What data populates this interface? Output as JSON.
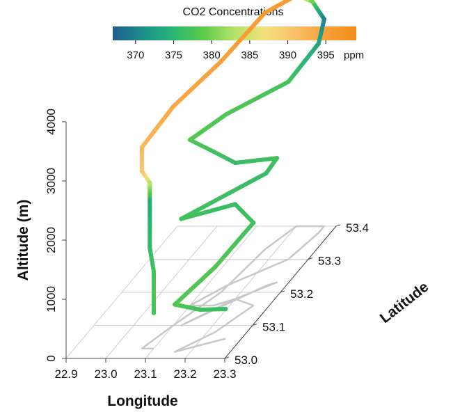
{
  "chart_data": {
    "type": "scatter",
    "projection": "3d",
    "title": "CO2 Concentrations",
    "colorbar": {
      "label": "CO2 Concentrations",
      "unit": "ppm",
      "ticks": [
        "370",
        "375",
        "380",
        "385",
        "390",
        "395"
      ],
      "tick_values": [
        370,
        375,
        380,
        385,
        390,
        395
      ],
      "range": [
        367,
        399
      ],
      "colors": [
        "#1f5d8e",
        "#1f8e8e",
        "#2bb673",
        "#5dcb4a",
        "#b5e26a",
        "#f3e17a",
        "#fbc06a",
        "#f8a13a",
        "#f48b1a"
      ]
    },
    "xlabel": "Longitude",
    "ylabel": "Latitude",
    "zlabel": "Altitude (m)",
    "xticks": [
      "22.9",
      "23.0",
      "23.1",
      "23.2",
      "23.3"
    ],
    "yticks": [
      "53.0",
      "53.1",
      "53.2",
      "53.3",
      "53.4"
    ],
    "zticks": [
      "0",
      "1000",
      "2000",
      "3000",
      "4000"
    ],
    "xlim": [
      22.9,
      23.3
    ],
    "ylim": [
      53.0,
      53.4
    ],
    "zlim": [
      0,
      4000
    ],
    "grid": true,
    "flight_track": [
      {
        "lon": 23.1,
        "lat": 53.03,
        "alt": 600,
        "co2": 377
      },
      {
        "lon": 23.1,
        "lat": 53.03,
        "alt": 900,
        "co2": 378
      },
      {
        "lon": 23.1,
        "lat": 53.03,
        "alt": 1300,
        "co2": 377
      },
      {
        "lon": 23.09,
        "lat": 53.03,
        "alt": 1700,
        "co2": 376
      },
      {
        "lon": 23.09,
        "lat": 53.03,
        "alt": 2100,
        "co2": 375
      },
      {
        "lon": 23.09,
        "lat": 53.03,
        "alt": 2500,
        "co2": 374
      },
      {
        "lon": 23.09,
        "lat": 53.03,
        "alt": 2800,
        "co2": 383
      },
      {
        "lon": 23.07,
        "lat": 53.03,
        "alt": 3000,
        "co2": 390
      },
      {
        "lon": 23.07,
        "lat": 53.03,
        "alt": 3400,
        "co2": 392
      },
      {
        "lon": 23.1,
        "lat": 53.1,
        "alt": 3700,
        "co2": 394
      },
      {
        "lon": 23.15,
        "lat": 53.2,
        "alt": 3900,
        "co2": 395
      },
      {
        "lon": 23.17,
        "lat": 53.33,
        "alt": 4000,
        "co2": 396
      },
      {
        "lon": 23.2,
        "lat": 53.4,
        "alt": 3900,
        "co2": 396
      },
      {
        "lon": 23.24,
        "lat": 53.4,
        "alt": 3800,
        "co2": 380
      },
      {
        "lon": 23.27,
        "lat": 53.4,
        "alt": 3500,
        "co2": 370
      },
      {
        "lon": 23.27,
        "lat": 53.38,
        "alt": 3200,
        "co2": 373
      },
      {
        "lon": 23.25,
        "lat": 53.3,
        "alt": 3000,
        "co2": 377
      },
      {
        "lon": 23.15,
        "lat": 53.22,
        "alt": 2900,
        "co2": 378
      },
      {
        "lon": 23.1,
        "lat": 53.16,
        "alt": 2800,
        "co2": 378
      },
      {
        "lon": 23.16,
        "lat": 53.16,
        "alt": 2600,
        "co2": 377
      },
      {
        "lon": 23.2,
        "lat": 53.18,
        "alt": 2300,
        "co2": 376
      },
      {
        "lon": 23.27,
        "lat": 53.23,
        "alt": 2100,
        "co2": 377
      },
      {
        "lon": 23.25,
        "lat": 53.22,
        "alt": 1900,
        "co2": 376
      },
      {
        "lon": 23.12,
        "lat": 53.1,
        "alt": 1800,
        "co2": 377
      },
      {
        "lon": 23.2,
        "lat": 53.18,
        "alt": 1600,
        "co2": 376
      },
      {
        "lon": 23.26,
        "lat": 53.16,
        "alt": 1400,
        "co2": 377
      },
      {
        "lon": 23.22,
        "lat": 53.08,
        "alt": 1100,
        "co2": 378
      },
      {
        "lon": 23.16,
        "lat": 53.02,
        "alt": 800,
        "co2": 378
      },
      {
        "lon": 23.21,
        "lat": 53.04,
        "alt": 600,
        "co2": 377
      },
      {
        "lon": 23.26,
        "lat": 53.06,
        "alt": 500,
        "co2": 376
      }
    ]
  }
}
